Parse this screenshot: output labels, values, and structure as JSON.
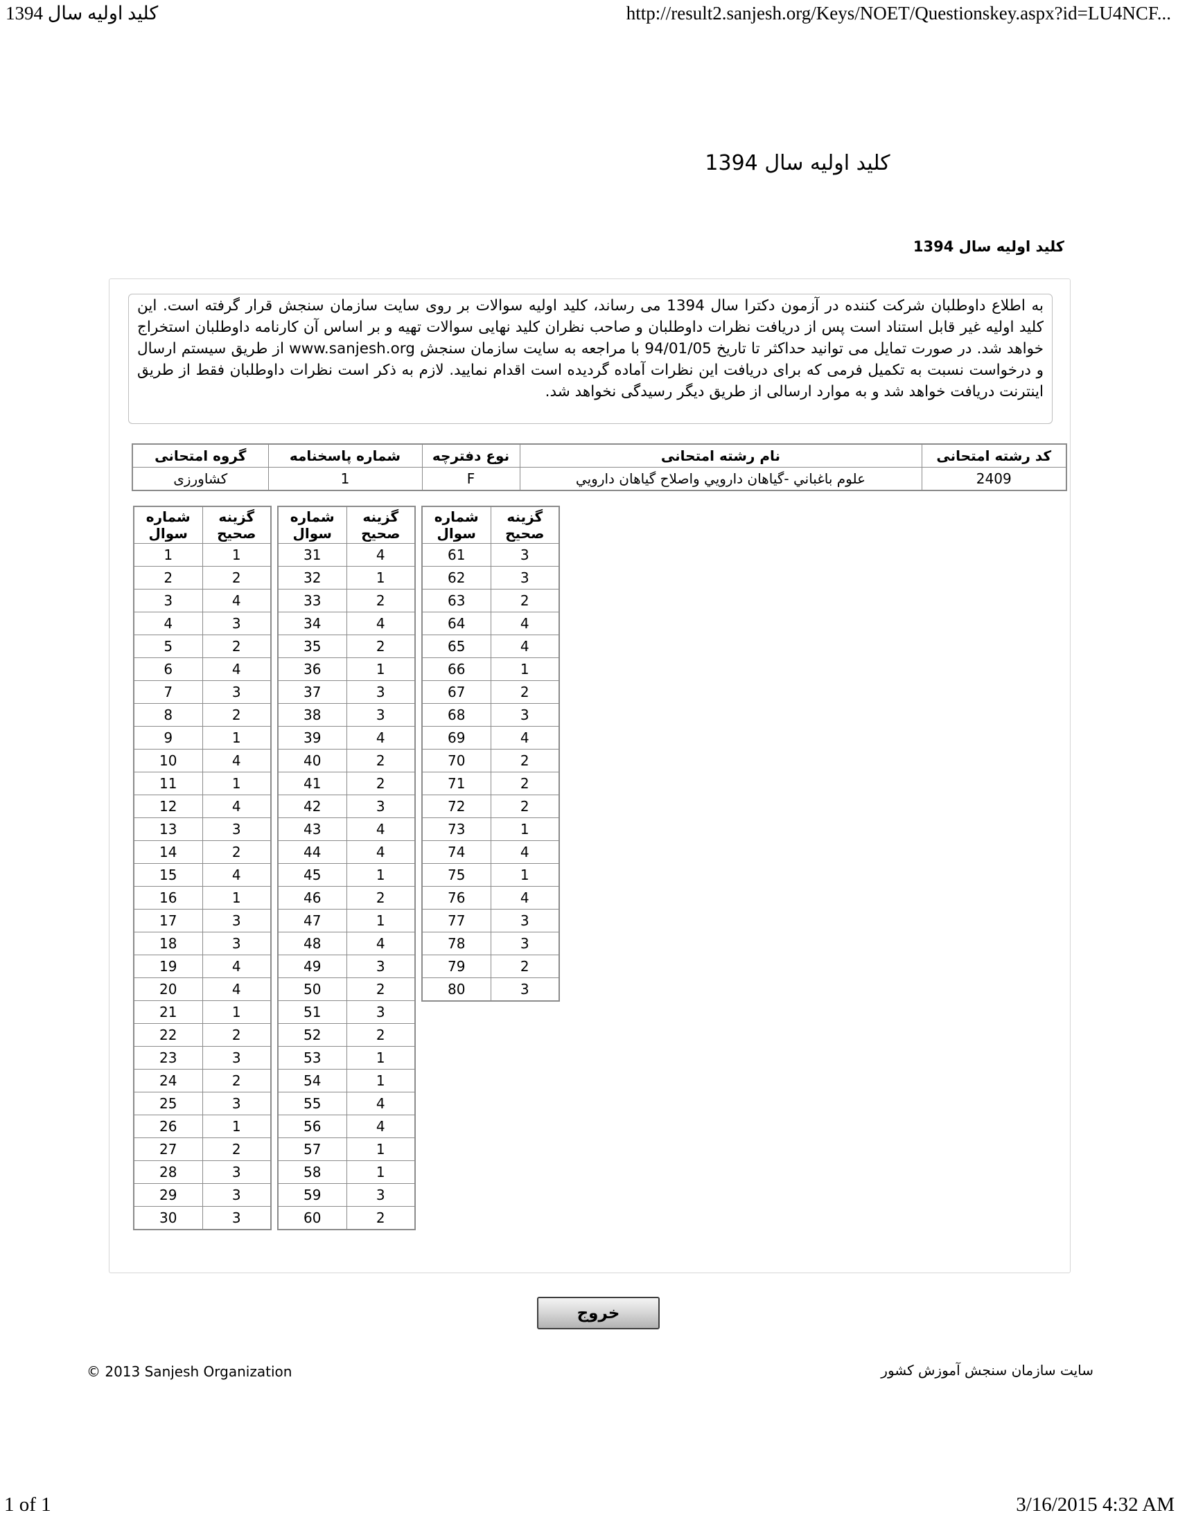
{
  "print_header": {
    "document_title": "کلید اولیه سال 1394",
    "url": "http://result2.sanjesh.org/Keys/NOET/Questionskey.aspx?id=LU4NCF..."
  },
  "content": {
    "title": "کلید اولیه سال 1394",
    "section_title": "کلید اولیه سال 1394",
    "notice": "به اطلاع داوطلبان شرکت کننده در آزمون دکترا سال 1394 می رساند، کلید اولیه سوالات بر روی سایت سازمان سنجش قرار گرفته است. این کلید اولیه غیر قابل استناد است پس از دریافت نظرات داوطلبان و صاحب نظران کلید نهایی سوالات تهیه و بر اساس آن کارنامه داوطلبان استخراج خواهد شد. در صورت تمایل می توانید حداکثر تا تاریخ 94/01/05 با مراجعه به سایت سازمان سنجش www.sanjesh.org از طریق  سیستم ارسال و درخواست نسبت به تکمیل فرمی که برای دریافت این نظرات آماده گردیده است اقدام نمایید. لازم به ذکر است نظرات داوطلبان فقط از طریق اینترنت دریافت خواهد شد و به موارد ارسالی از طریق دیگر رسیدگی نخواهد شد."
  },
  "info_table": {
    "headers": {
      "exam_code": "کد رشته امتحانی",
      "field_name": "نام رشته امتحانی",
      "booklet_type": "نوع دفترچه",
      "answer_sheet_no": "شماره پاسخنامه",
      "exam_group": "گروه امتحانی"
    },
    "values": {
      "exam_code": "2409",
      "field_name": "علوم باغباني -گياهان دارويي واصلاح گياهان دارويي",
      "booklet_type": "F",
      "answer_sheet_no": "1",
      "exam_group": "کشاورزی"
    }
  },
  "answer_key": {
    "question_header_line1": "شماره",
    "question_header_line2": "سوال",
    "answer_header_line1": "گزینه",
    "answer_header_line2": "صحیح",
    "tables": [
      {
        "rows": [
          [
            1,
            1
          ],
          [
            2,
            2
          ],
          [
            3,
            4
          ],
          [
            4,
            3
          ],
          [
            5,
            2
          ],
          [
            6,
            4
          ],
          [
            7,
            3
          ],
          [
            8,
            2
          ],
          [
            9,
            1
          ],
          [
            10,
            4
          ],
          [
            11,
            1
          ],
          [
            12,
            4
          ],
          [
            13,
            3
          ],
          [
            14,
            2
          ],
          [
            15,
            4
          ],
          [
            16,
            1
          ],
          [
            17,
            3
          ],
          [
            18,
            3
          ],
          [
            19,
            4
          ],
          [
            20,
            4
          ],
          [
            21,
            1
          ],
          [
            22,
            2
          ],
          [
            23,
            3
          ],
          [
            24,
            2
          ],
          [
            25,
            3
          ],
          [
            26,
            1
          ],
          [
            27,
            2
          ],
          [
            28,
            3
          ],
          [
            29,
            3
          ],
          [
            30,
            3
          ]
        ]
      },
      {
        "rows": [
          [
            31,
            4
          ],
          [
            32,
            1
          ],
          [
            33,
            2
          ],
          [
            34,
            4
          ],
          [
            35,
            2
          ],
          [
            36,
            1
          ],
          [
            37,
            3
          ],
          [
            38,
            3
          ],
          [
            39,
            4
          ],
          [
            40,
            2
          ],
          [
            41,
            2
          ],
          [
            42,
            3
          ],
          [
            43,
            4
          ],
          [
            44,
            4
          ],
          [
            45,
            1
          ],
          [
            46,
            2
          ],
          [
            47,
            1
          ],
          [
            48,
            4
          ],
          [
            49,
            3
          ],
          [
            50,
            2
          ],
          [
            51,
            3
          ],
          [
            52,
            2
          ],
          [
            53,
            1
          ],
          [
            54,
            1
          ],
          [
            55,
            4
          ],
          [
            56,
            4
          ],
          [
            57,
            1
          ],
          [
            58,
            1
          ],
          [
            59,
            3
          ],
          [
            60,
            2
          ]
        ]
      },
      {
        "rows": [
          [
            61,
            3
          ],
          [
            62,
            3
          ],
          [
            63,
            2
          ],
          [
            64,
            4
          ],
          [
            65,
            4
          ],
          [
            66,
            1
          ],
          [
            67,
            2
          ],
          [
            68,
            3
          ],
          [
            69,
            4
          ],
          [
            70,
            2
          ],
          [
            71,
            2
          ],
          [
            72,
            2
          ],
          [
            73,
            1
          ],
          [
            74,
            4
          ],
          [
            75,
            1
          ],
          [
            76,
            4
          ],
          [
            77,
            3
          ],
          [
            78,
            3
          ],
          [
            79,
            2
          ],
          [
            80,
            3
          ]
        ]
      }
    ]
  },
  "exit_button_label": "خروج",
  "footer": {
    "copyright": "© 2013 Sanjesh Organization",
    "site_name": "سایت سازمان سنجش آموزش کشور"
  },
  "print_footer": {
    "page_indicator": "1 of 1",
    "timestamp": "3/16/2015 4:32 AM"
  }
}
